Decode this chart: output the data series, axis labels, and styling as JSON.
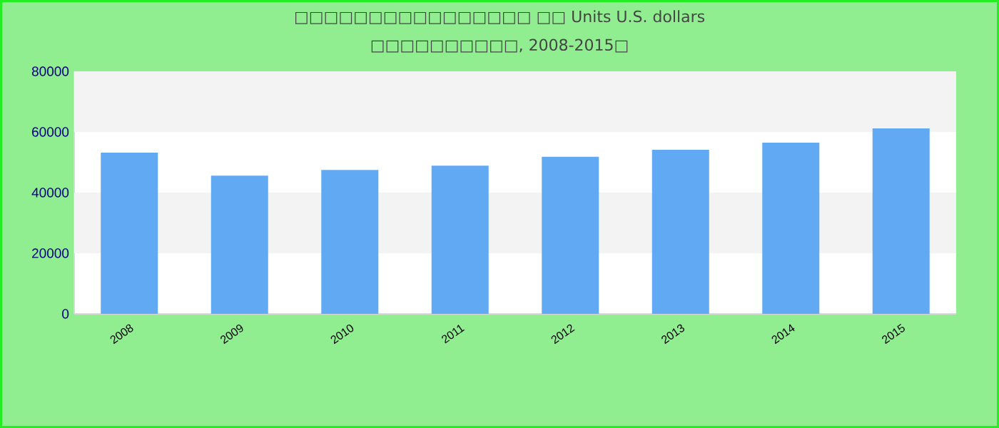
{
  "chart_data": {
    "type": "bar",
    "title": "□□□□□□□□□□□□□□□□ □□ Units U.S. dollars",
    "subtitle": "□□□□□□□□□□, 2008-2015□",
    "categories": [
      "2008",
      "2009",
      "2010",
      "2011",
      "2012",
      "2013",
      "2014",
      "2015"
    ],
    "values": [
      53200,
      45600,
      47500,
      48900,
      51800,
      54100,
      56500,
      61200
    ],
    "color": "#62a9f4",
    "ylim": [
      0,
      80000
    ],
    "yticks": [
      0,
      20000,
      40000,
      60000,
      80000
    ],
    "bands": [
      {
        "axis": "y",
        "from": 20000,
        "to": 40000,
        "color": "#f3f3f3"
      },
      {
        "axis": "y",
        "from": 60000,
        "to": 80000,
        "color": "#f3f3f3"
      }
    ]
  }
}
